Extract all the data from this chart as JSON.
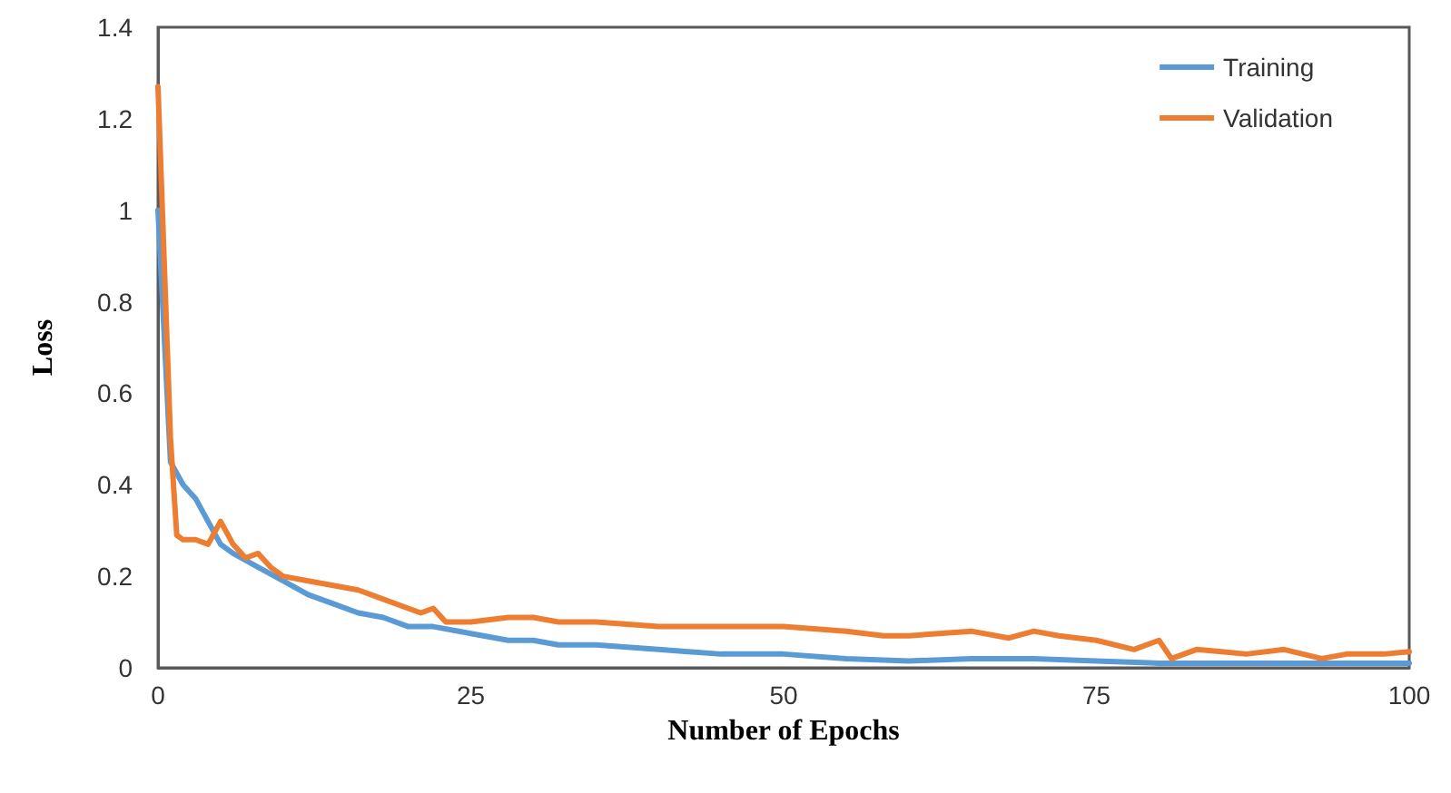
{
  "chart_data": {
    "type": "line",
    "xlabel": "Number of Epochs",
    "ylabel": "Loss",
    "xlim": [
      0,
      100
    ],
    "xticks": [
      0,
      25,
      50,
      75,
      100
    ],
    "ylim": [
      0,
      1.4
    ],
    "yticks": [
      0,
      0.2,
      0.4,
      0.6,
      0.8,
      1,
      1.2,
      1.4
    ],
    "grid": false,
    "legend": "top right",
    "marker": "none",
    "line_style": "solid",
    "series": [
      {
        "name": "Training",
        "color": "#5b9bd5",
        "x": [
          0,
          1,
          2,
          3,
          4,
          5,
          6,
          8,
          10,
          12,
          14,
          16,
          18,
          20,
          22,
          25,
          28,
          30,
          32,
          35,
          40,
          45,
          50,
          55,
          60,
          65,
          70,
          75,
          80,
          85,
          90,
          95,
          100
        ],
        "values": [
          1.0,
          0.45,
          0.4,
          0.37,
          0.32,
          0.27,
          0.25,
          0.22,
          0.19,
          0.16,
          0.14,
          0.12,
          0.11,
          0.09,
          0.09,
          0.075,
          0.06,
          0.06,
          0.05,
          0.05,
          0.04,
          0.03,
          0.03,
          0.02,
          0.015,
          0.02,
          0.02,
          0.015,
          0.01,
          0.01,
          0.01,
          0.01,
          0.01
        ]
      },
      {
        "name": "Validation",
        "color": "#ed7d31",
        "x": [
          0,
          1,
          1.5,
          2,
          3,
          4,
          5,
          6,
          7,
          8,
          9,
          10,
          12,
          14,
          16,
          18,
          20,
          21,
          22,
          23,
          25,
          28,
          30,
          32,
          35,
          40,
          45,
          50,
          55,
          58,
          60,
          65,
          68,
          70,
          72,
          75,
          78,
          80,
          81,
          83,
          85,
          87,
          90,
          93,
          95,
          98,
          100
        ],
        "values": [
          1.27,
          0.5,
          0.29,
          0.28,
          0.28,
          0.27,
          0.32,
          0.27,
          0.24,
          0.25,
          0.22,
          0.2,
          0.19,
          0.18,
          0.17,
          0.15,
          0.13,
          0.12,
          0.13,
          0.1,
          0.1,
          0.11,
          0.11,
          0.1,
          0.1,
          0.09,
          0.09,
          0.09,
          0.08,
          0.07,
          0.07,
          0.08,
          0.065,
          0.08,
          0.07,
          0.06,
          0.04,
          0.06,
          0.02,
          0.04,
          0.035,
          0.03,
          0.04,
          0.02,
          0.03,
          0.03,
          0.035
        ]
      }
    ]
  }
}
